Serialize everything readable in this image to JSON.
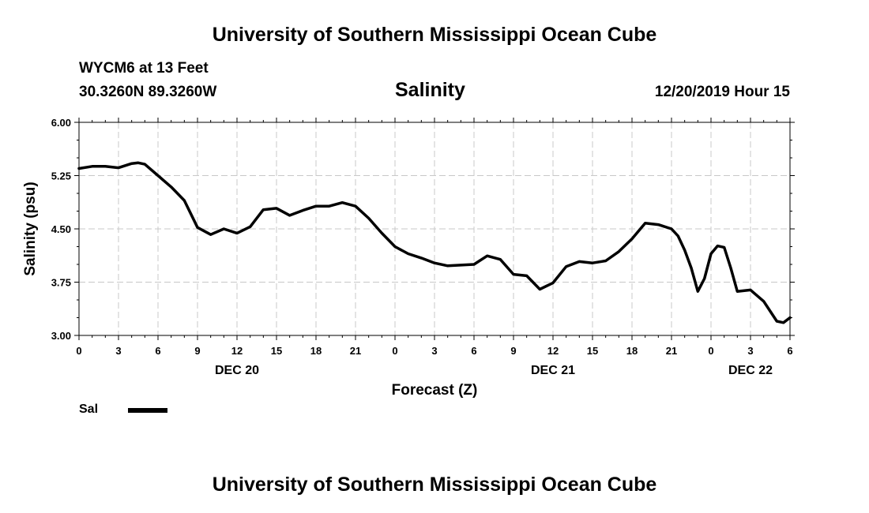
{
  "header_top": "University of Southern Mississippi Ocean Cube",
  "header_bottom": "University of Southern Mississippi Ocean Cube",
  "station": "WYCM6 at 13 Feet",
  "coordinates": "30.3260N 89.3260W",
  "timestamp": "12/20/2019 Hour 15",
  "legend": {
    "label": "Sal",
    "color": "#000000"
  },
  "chart_data": {
    "type": "line",
    "title": "Salinity",
    "xlabel": "Forecast (Z)",
    "ylabel": "Salinity (psu)",
    "x_unit": "hours from Dec 20 00Z",
    "xlim": [
      0,
      54
    ],
    "ylim": [
      3.0,
      6.0
    ],
    "grid": true,
    "legend_position": "bottom-left",
    "y_ticks": [
      "6.00",
      "5.25",
      "4.50",
      "3.75",
      "3.00"
    ],
    "x_ticks": [
      {
        "x": 0,
        "label": "0"
      },
      {
        "x": 3,
        "label": "3"
      },
      {
        "x": 6,
        "label": "6"
      },
      {
        "x": 9,
        "label": "9"
      },
      {
        "x": 12,
        "label": "12"
      },
      {
        "x": 15,
        "label": "15"
      },
      {
        "x": 18,
        "label": "18"
      },
      {
        "x": 21,
        "label": "21"
      },
      {
        "x": 24,
        "label": "0"
      },
      {
        "x": 27,
        "label": "3"
      },
      {
        "x": 30,
        "label": "6"
      },
      {
        "x": 33,
        "label": "9"
      },
      {
        "x": 36,
        "label": "12"
      },
      {
        "x": 39,
        "label": "15"
      },
      {
        "x": 42,
        "label": "18"
      },
      {
        "x": 45,
        "label": "21"
      },
      {
        "x": 48,
        "label": "0"
      },
      {
        "x": 51,
        "label": "3"
      },
      {
        "x": 54,
        "label": "6"
      }
    ],
    "day_labels": [
      {
        "x": 12,
        "label": "DEC 20"
      },
      {
        "x": 36,
        "label": "DEC 21"
      },
      {
        "x": 51,
        "label": "DEC 22"
      }
    ],
    "series": [
      {
        "name": "Sal",
        "x": [
          0,
          1,
          2,
          3,
          4,
          4.5,
          5,
          6,
          7,
          8,
          9,
          10,
          11,
          12,
          13,
          14,
          15,
          16,
          17,
          18,
          19,
          20,
          21,
          22,
          23,
          24,
          25,
          26,
          27,
          28,
          29,
          30,
          31,
          32,
          33,
          34,
          35,
          36,
          37,
          38,
          39,
          40,
          41,
          42,
          43,
          44,
          45,
          45.5,
          46,
          46.5,
          47,
          47.5,
          48,
          48.5,
          49,
          49.5,
          50,
          51,
          52,
          53,
          53.5,
          54
        ],
        "values": [
          5.35,
          5.38,
          5.38,
          5.36,
          5.42,
          5.43,
          5.41,
          5.25,
          5.09,
          4.9,
          4.52,
          4.42,
          4.5,
          4.44,
          4.53,
          4.77,
          4.79,
          4.69,
          4.76,
          4.82,
          4.82,
          4.87,
          4.82,
          4.65,
          4.44,
          4.25,
          4.15,
          4.09,
          4.02,
          3.98,
          3.99,
          4.0,
          4.12,
          4.07,
          3.86,
          3.84,
          3.65,
          3.74,
          3.97,
          4.04,
          4.02,
          4.05,
          4.18,
          4.36,
          4.58,
          4.56,
          4.5,
          4.4,
          4.2,
          3.95,
          3.62,
          3.8,
          4.15,
          4.26,
          4.24,
          3.95,
          3.62,
          3.64,
          3.48,
          3.2,
          3.18,
          3.25
        ]
      }
    ]
  }
}
